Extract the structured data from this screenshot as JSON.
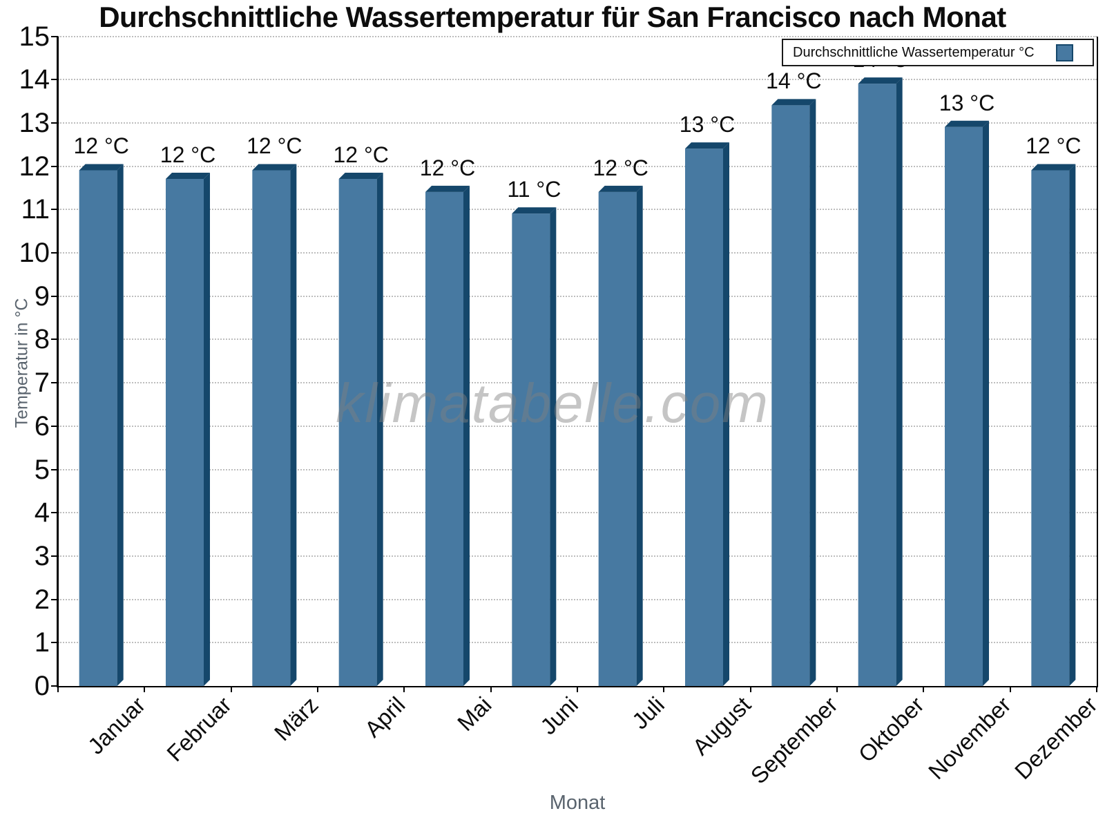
{
  "chart_data": {
    "type": "bar",
    "title": "Durchschnittliche Wassertemperatur für San Francisco nach Monat",
    "xlabel": "Monat",
    "ylabel": "Temperatur in °C",
    "watermark": "klimatabelle.com",
    "legend": {
      "label": "Durchschnittliche Wassertemperatur °C",
      "position": "top-right"
    },
    "categories": [
      "Januar",
      "Februar",
      "März",
      "April",
      "Mai",
      "Juni",
      "Juli",
      "August",
      "September",
      "Oktober",
      "November",
      "Dezember"
    ],
    "values": [
      12.05,
      11.85,
      12.05,
      11.85,
      11.55,
      11.05,
      11.55,
      12.55,
      13.55,
      14.05,
      13.05,
      12.05
    ],
    "bar_labels": [
      "12 °C",
      "12 °C",
      "12 °C",
      "12 °C",
      "12 °C",
      "11 °C",
      "12 °C",
      "13 °C",
      "14 °C",
      "14 °C",
      "13 °C",
      "12 °C"
    ],
    "ylim": [
      0,
      15
    ],
    "yticks": [
      0,
      1,
      2,
      3,
      4,
      5,
      6,
      7,
      8,
      9,
      10,
      11,
      12,
      13,
      14,
      15
    ],
    "grid": "horizontal-dotted",
    "bar_style": "3d-extruded",
    "colors": {
      "bar_face": "#4779A1",
      "bar_edge_3d": "#15476B",
      "axis": "#000000",
      "grid": "#bdbdbd",
      "tick_label": "#0d0d0d",
      "axis_label": "#5a646e",
      "watermark": "#808080",
      "legend_border": "#1a1a1a",
      "legend_bg": "#ffffff",
      "background": "#ffffff"
    }
  }
}
